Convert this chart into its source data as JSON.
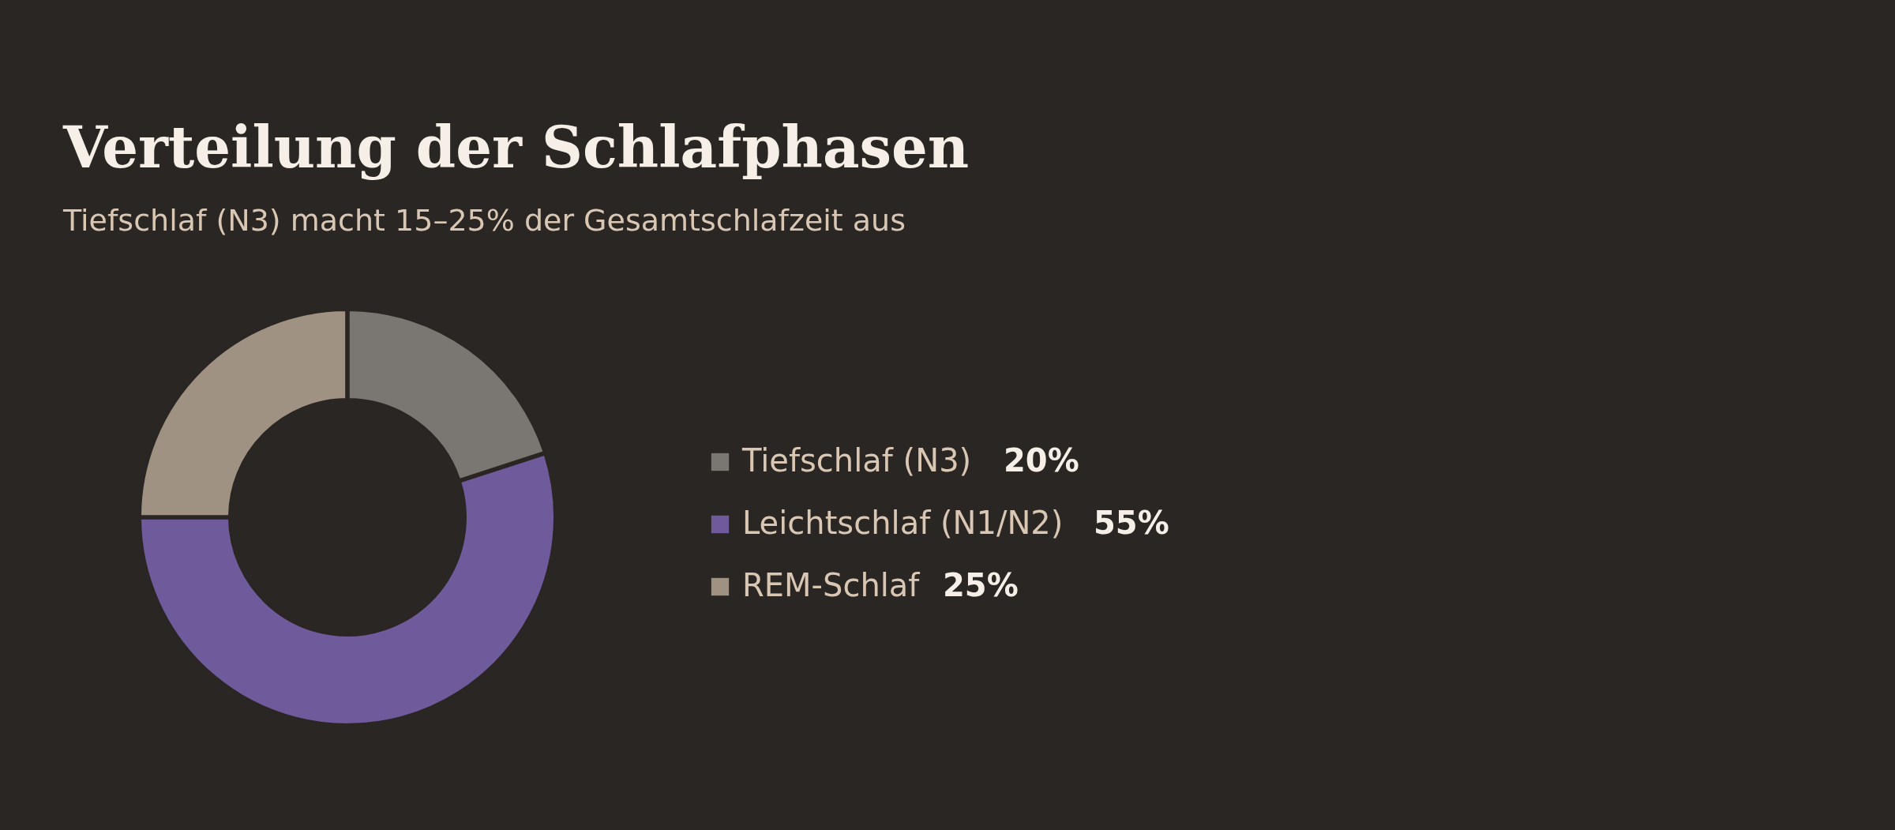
{
  "chart_data": {
    "type": "donut",
    "title": "Verteilung der Schlafphasen",
    "subtitle": "Tiefschlaf (N3) macht 15–25% der Gesamtschlafzeit aus",
    "categories": [
      "Tiefschlaf (N3)",
      "Leichtschlaf (N1/N2)",
      "REM-Schlaf"
    ],
    "values": [
      20,
      55,
      25
    ],
    "colors": [
      "#7a7672",
      "#6f5a9c",
      "#a09282"
    ],
    "value_labels": [
      "20%",
      "55%",
      "25%"
    ],
    "legend": "right"
  }
}
